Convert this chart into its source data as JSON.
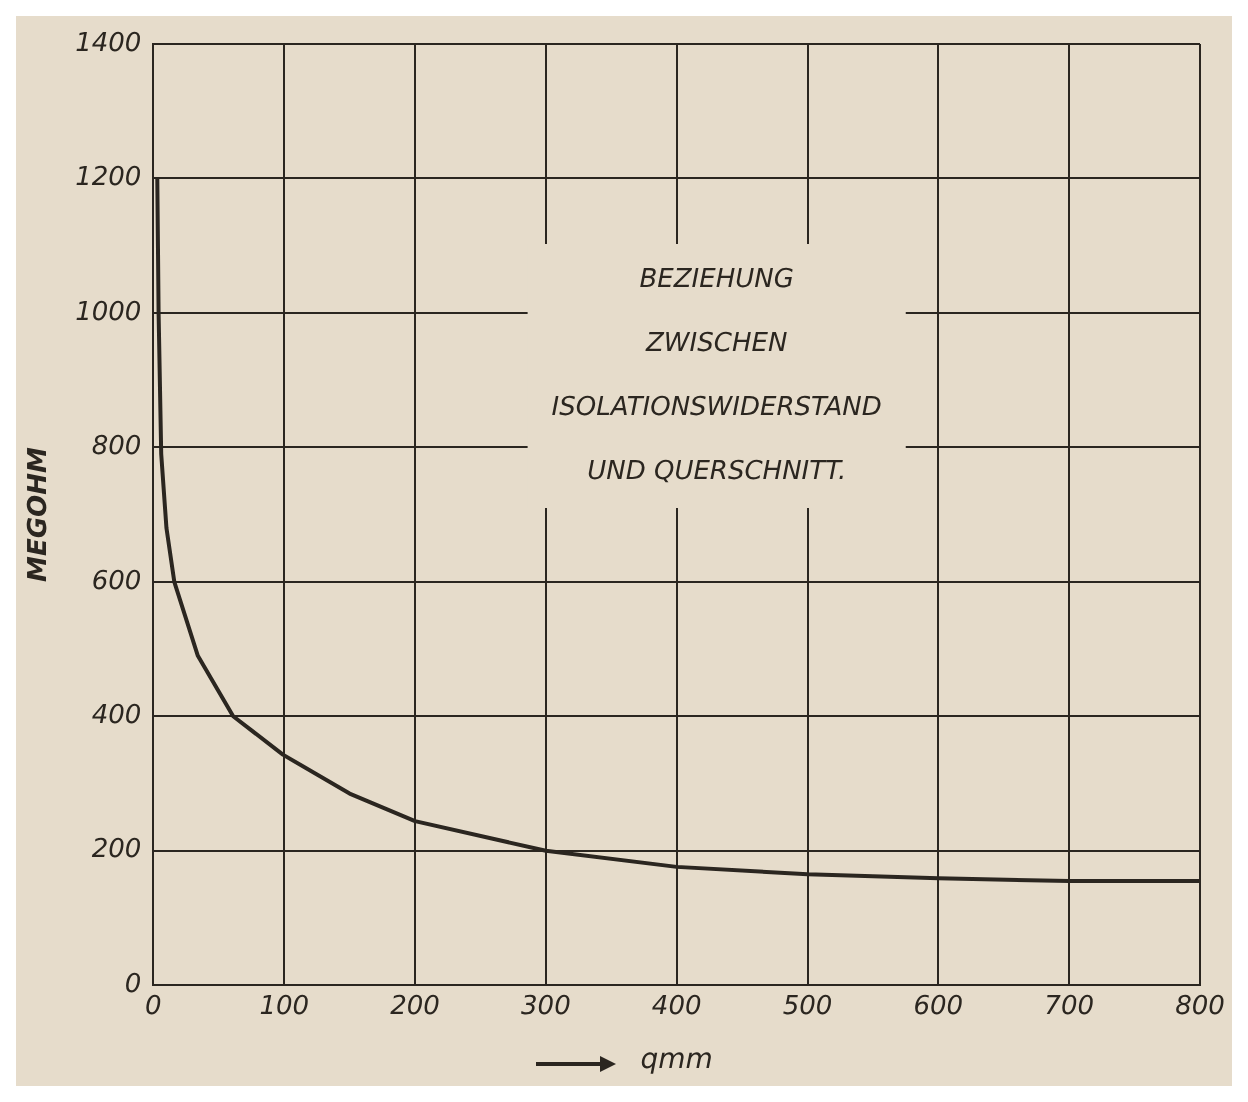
{
  "chart_data": {
    "type": "line",
    "xlabel": "qmm",
    "ylabel": "MEGOHM",
    "annotations": [
      "BEZIEHUNG",
      "ZWISCHEN",
      "ISOLATIONSWIDERSTAND",
      "UND QUERSCHNITT."
    ],
    "series": [
      {
        "color": "#2b2620",
        "x": [
          3,
          4,
          6,
          10,
          16,
          34,
          61,
          99,
          150,
          200,
          300,
          400,
          500,
          600,
          700,
          800
        ],
        "values": [
          1200,
          1000,
          790,
          680,
          600,
          490,
          400,
          343,
          285,
          244,
          200,
          176,
          165,
          159,
          155,
          155
        ]
      }
    ],
    "xlim": [
      0,
      800
    ],
    "xticks": [
      0,
      100,
      200,
      300,
      400,
      500,
      600,
      700,
      800
    ],
    "ylim": [
      0,
      1400
    ],
    "yticks": [
      0,
      200,
      400,
      600,
      800,
      1000,
      1200,
      1400
    ],
    "grid": true,
    "legend": false,
    "marker": "none",
    "line_style": "solid"
  }
}
